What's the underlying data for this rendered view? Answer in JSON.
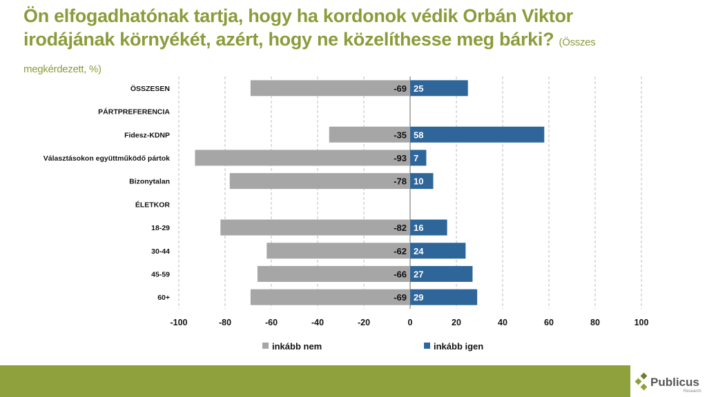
{
  "title": {
    "main": "Ön elfogadhatónak tartja, hogy ha kordonok védik Orbán Viktor irodájának környékét, azért, hogy ne közelíthesse meg bárki?",
    "sub": "(Összes megkérdezett, %)"
  },
  "logo": {
    "name": "Publicus",
    "tagline": "Research"
  },
  "colors": {
    "title": "#8c9b3a",
    "footer": "#8ea13c",
    "nem": "#a6a6a6",
    "igen": "#2e6699"
  },
  "chart_data": {
    "type": "bar",
    "orientation": "horizontal-diverging",
    "categories": [
      "ÖSSZESEN",
      "PÁRTPREFERENCIA",
      "Fidesz-KDNP",
      "Választásokon együttműködő pártok",
      "Bizonytalan",
      "ÉLETKOR",
      "18-29",
      "30-44",
      "45-59",
      "60+"
    ],
    "series": [
      {
        "name": "inkább nem",
        "values": [
          -69,
          null,
          -35,
          -93,
          -78,
          null,
          -82,
          -62,
          -66,
          -69
        ]
      },
      {
        "name": "inkább igen",
        "values": [
          25,
          null,
          58,
          7,
          10,
          null,
          16,
          24,
          27,
          29
        ]
      }
    ],
    "xlim": [
      -100,
      100
    ],
    "xticks": [
      "-100",
      "-80",
      "-60",
      "-40",
      "-20",
      "0",
      "20",
      "40",
      "60",
      "80",
      "100"
    ],
    "grid": true,
    "legend": "bottom"
  }
}
